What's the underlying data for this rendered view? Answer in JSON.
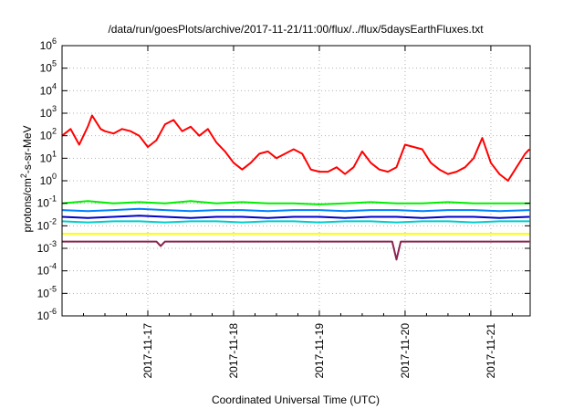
{
  "chart_data": {
    "type": "line",
    "title": "/data/run/goesPlots/archive/2017-11-21/11:00/flux/../flux/5daysEarthFluxes.txt",
    "xlabel": "Coordinated Universal Time (UTC)",
    "ylabel": "protons/cm²-s-sr-MeV",
    "ylabel_parts": {
      "pre": "protons/cm",
      "sup": "2",
      "post": "-s-sr-MeV"
    },
    "y_scale": "log",
    "ylim_exponents": [
      -6,
      6
    ],
    "y_ticks": [
      {
        "base": "10",
        "exp": "6",
        "value": 6
      },
      {
        "base": "10",
        "exp": "5",
        "value": 5
      },
      {
        "base": "10",
        "exp": "4",
        "value": 4
      },
      {
        "base": "10",
        "exp": "3",
        "value": 3
      },
      {
        "base": "10",
        "exp": "2",
        "value": 2
      },
      {
        "base": "10",
        "exp": "1",
        "value": 1
      },
      {
        "base": "10",
        "exp": "0",
        "value": 0
      },
      {
        "base": "10",
        "exp": "-1",
        "value": -1
      },
      {
        "base": "10",
        "exp": "-2",
        "value": -2
      },
      {
        "base": "10",
        "exp": "-3",
        "value": -3
      },
      {
        "base": "10",
        "exp": "-4",
        "value": -4
      },
      {
        "base": "10",
        "exp": "-5",
        "value": -5
      },
      {
        "base": "10",
        "exp": "-6",
        "value": -6
      }
    ],
    "x_range_days": [
      "2017-11-16 00:00",
      "2017-11-21 11:00"
    ],
    "x_ticks": [
      "2017-11-17",
      "2017-11-18",
      "2017-11-19",
      "2017-11-20",
      "2017-11-21"
    ],
    "grid": true,
    "series": [
      {
        "color": "#ff0000",
        "x_days": [
          0.0,
          0.1,
          0.2,
          0.3,
          0.35,
          0.45,
          0.5,
          0.6,
          0.7,
          0.8,
          0.9,
          1.0,
          1.1,
          1.2,
          1.3,
          1.4,
          1.5,
          1.6,
          1.7,
          1.8,
          1.9,
          2.0,
          2.1,
          2.2,
          2.3,
          2.4,
          2.5,
          2.6,
          2.7,
          2.8,
          2.9,
          3.0,
          3.1,
          3.2,
          3.3,
          3.4,
          3.5,
          3.6,
          3.7,
          3.8,
          3.9,
          4.0,
          4.1,
          4.2,
          4.3,
          4.4,
          4.5,
          4.6,
          4.7,
          4.8,
          4.9,
          5.0,
          5.1,
          5.2,
          5.3,
          5.4,
          5.45
        ],
        "y_log10": [
          2.0,
          2.3,
          1.6,
          2.4,
          2.9,
          2.3,
          2.2,
          2.1,
          2.3,
          2.2,
          2.0,
          1.5,
          1.8,
          2.5,
          2.7,
          2.2,
          2.4,
          2.0,
          2.3,
          1.7,
          1.3,
          0.8,
          0.5,
          0.8,
          1.2,
          1.3,
          1.0,
          1.2,
          1.4,
          1.2,
          0.5,
          0.4,
          0.4,
          0.6,
          0.3,
          0.6,
          1.3,
          0.8,
          0.5,
          0.4,
          0.6,
          1.6,
          1.5,
          1.4,
          0.8,
          0.5,
          0.3,
          0.4,
          0.6,
          1.0,
          1.9,
          0.8,
          0.3,
          0.0,
          0.6,
          1.2,
          1.4
        ]
      },
      {
        "color": "#00ee00",
        "x_days": [
          0.0,
          0.3,
          0.6,
          0.9,
          1.2,
          1.5,
          1.8,
          2.1,
          2.4,
          2.7,
          3.0,
          3.3,
          3.6,
          3.9,
          4.2,
          4.5,
          4.8,
          5.1,
          5.45
        ],
        "y_log10": [
          -1.0,
          -0.9,
          -1.0,
          -0.95,
          -1.0,
          -0.9,
          -1.0,
          -0.95,
          -1.0,
          -1.0,
          -1.05,
          -1.0,
          -0.95,
          -1.0,
          -1.0,
          -0.95,
          -1.0,
          -1.0,
          -1.0
        ]
      },
      {
        "color": "#0080ff",
        "x_days": [
          0.0,
          0.3,
          0.6,
          0.9,
          1.2,
          1.5,
          1.8,
          2.1,
          2.4,
          2.7,
          3.0,
          3.3,
          3.6,
          3.9,
          4.2,
          4.5,
          4.8,
          5.1,
          5.45
        ],
        "y_log10": [
          -1.3,
          -1.35,
          -1.3,
          -1.25,
          -1.3,
          -1.35,
          -1.3,
          -1.3,
          -1.35,
          -1.3,
          -1.3,
          -1.35,
          -1.3,
          -1.3,
          -1.35,
          -1.3,
          -1.3,
          -1.35,
          -1.3
        ]
      },
      {
        "color": "#00cccc",
        "x_days": [
          0.0,
          0.3,
          0.6,
          0.9,
          1.2,
          1.5,
          1.8,
          2.1,
          2.4,
          2.7,
          3.0,
          3.3,
          3.6,
          3.9,
          4.2,
          4.5,
          4.8,
          5.1,
          5.45
        ],
        "y_log10": [
          -1.8,
          -1.85,
          -1.8,
          -1.8,
          -1.85,
          -1.8,
          -1.8,
          -1.85,
          -1.8,
          -1.8,
          -1.85,
          -1.8,
          -1.8,
          -1.85,
          -1.8,
          -1.8,
          -1.85,
          -1.8,
          -1.8
        ]
      },
      {
        "color": "#0000cc",
        "x_days": [
          0.0,
          0.3,
          0.6,
          0.9,
          1.2,
          1.5,
          1.8,
          2.1,
          2.4,
          2.7,
          3.0,
          3.3,
          3.6,
          3.9,
          4.2,
          4.5,
          4.8,
          5.1,
          5.45
        ],
        "y_log10": [
          -1.6,
          -1.65,
          -1.6,
          -1.55,
          -1.6,
          -1.65,
          -1.6,
          -1.6,
          -1.65,
          -1.6,
          -1.6,
          -1.65,
          -1.6,
          -1.6,
          -1.65,
          -1.6,
          -1.6,
          -1.65,
          -1.6
        ]
      },
      {
        "color": "#ffff00",
        "x_days": [
          0.0,
          0.5,
          1.0,
          1.5,
          2.0,
          2.5,
          3.0,
          3.5,
          4.0,
          4.5,
          5.0,
          5.45
        ],
        "y_log10": [
          -2.35,
          -2.35,
          -2.35,
          -2.35,
          -2.35,
          -2.35,
          -2.35,
          -2.35,
          -2.35,
          -2.35,
          -2.35,
          -2.35
        ]
      },
      {
        "color": "#8b2252",
        "x_days": [
          0.0,
          0.5,
          1.0,
          1.1,
          1.15,
          1.2,
          1.5,
          2.0,
          2.5,
          3.0,
          3.5,
          3.85,
          3.9,
          3.95,
          4.5,
          4.8,
          5.0,
          5.45
        ],
        "y_log10": [
          -2.7,
          -2.7,
          -2.7,
          -2.7,
          -2.9,
          -2.7,
          -2.7,
          -2.7,
          -2.7,
          -2.7,
          -2.7,
          -2.7,
          -3.5,
          -2.7,
          -2.7,
          -2.7,
          -2.7,
          -2.7
        ]
      }
    ]
  }
}
